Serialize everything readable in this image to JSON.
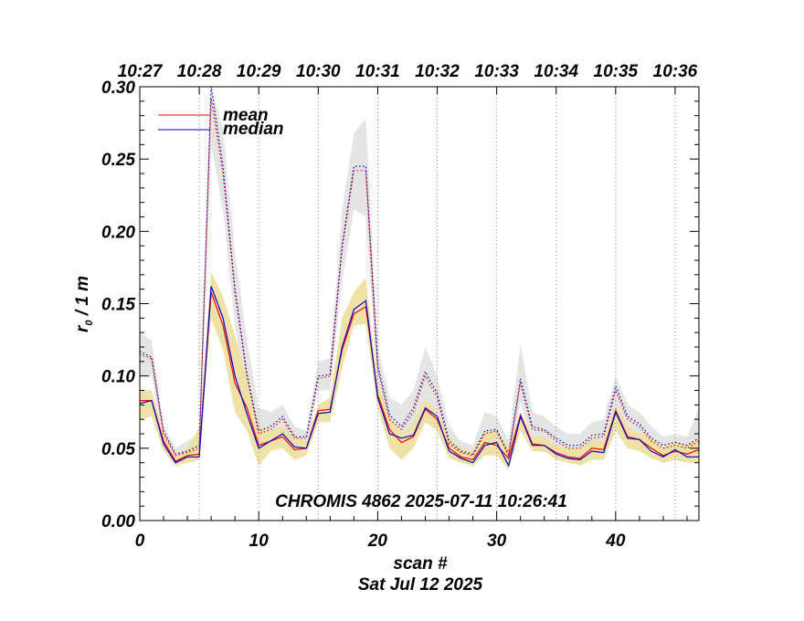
{
  "chart_data": {
    "type": "line",
    "title": "",
    "annotation": "CHROMIS 4862 2025-07-11 10:26:41",
    "xlabel": "scan #",
    "xlabel2": "Sat Jul 12 2025",
    "ylabel_main": "r",
    "ylabel_sub": "0",
    "ylabel_rest": " / 1 m",
    "xlim": [
      0,
      47
    ],
    "ylim": [
      0,
      0.3
    ],
    "x_ticks": [
      0,
      10,
      20,
      30,
      40
    ],
    "x_tick_labels": [
      "0",
      "10",
      "20",
      "30",
      "40"
    ],
    "y_ticks": [
      0,
      0.05,
      0.1,
      0.15,
      0.2,
      0.25,
      0.3
    ],
    "y_tick_labels": [
      "0.00",
      "0.05",
      "0.10",
      "0.15",
      "0.20",
      "0.25",
      "0.30"
    ],
    "time_axis": {
      "labels": [
        "10:27",
        "10:28",
        "10:29",
        "10:30",
        "10:31",
        "10:32",
        "10:33",
        "10:34",
        "10:35",
        "10:36"
      ],
      "positions": [
        0,
        5,
        10,
        15,
        20,
        25,
        30,
        35,
        40,
        45
      ]
    },
    "grid": "vertical dotted at time ticks",
    "legend_position": "top-left",
    "legend": [
      {
        "name": "mean",
        "color": "#ff0000"
      },
      {
        "name": "median",
        "color": "#0000cc"
      }
    ],
    "x": [
      0,
      1,
      2,
      3,
      4,
      5,
      6,
      7,
      8,
      9,
      10,
      11,
      12,
      13,
      14,
      15,
      16,
      17,
      18,
      19,
      20,
      21,
      22,
      23,
      24,
      25,
      26,
      27,
      28,
      29,
      30,
      31,
      32,
      33,
      34,
      35,
      36,
      37,
      38,
      39,
      40,
      41,
      42,
      43,
      44,
      45,
      46,
      47
    ],
    "series": [
      {
        "name": "mean",
        "style": "solid",
        "color": "#ff0000",
        "values": [
          0.083,
          0.083,
          0.055,
          0.041,
          0.045,
          0.046,
          0.158,
          0.135,
          0.095,
          0.078,
          0.052,
          0.055,
          0.058,
          0.049,
          0.05,
          0.076,
          0.077,
          0.118,
          0.143,
          0.148,
          0.087,
          0.063,
          0.054,
          0.058,
          0.077,
          0.07,
          0.05,
          0.044,
          0.042,
          0.054,
          0.052,
          0.043,
          0.073,
          0.053,
          0.052,
          0.047,
          0.044,
          0.043,
          0.05,
          0.049,
          0.076,
          0.058,
          0.056,
          0.05,
          0.045,
          0.048,
          0.046,
          0.049
        ]
      },
      {
        "name": "median",
        "style": "solid",
        "color": "#0000cc",
        "values": [
          0.081,
          0.083,
          0.053,
          0.04,
          0.044,
          0.044,
          0.162,
          0.14,
          0.1,
          0.074,
          0.05,
          0.055,
          0.06,
          0.051,
          0.05,
          0.074,
          0.075,
          0.12,
          0.146,
          0.152,
          0.085,
          0.06,
          0.057,
          0.059,
          0.078,
          0.072,
          0.048,
          0.043,
          0.04,
          0.052,
          0.054,
          0.038,
          0.072,
          0.052,
          0.052,
          0.046,
          0.043,
          0.042,
          0.048,
          0.047,
          0.075,
          0.057,
          0.056,
          0.048,
          0.044,
          0.049,
          0.044,
          0.044
        ]
      },
      {
        "name": "mean (dotted)",
        "style": "dotted",
        "color": "#ff0000",
        "values": [
          0.115,
          0.112,
          0.06,
          0.045,
          0.047,
          0.05,
          0.292,
          0.24,
          0.158,
          0.1,
          0.06,
          0.063,
          0.07,
          0.057,
          0.057,
          0.098,
          0.1,
          0.188,
          0.242,
          0.242,
          0.105,
          0.07,
          0.063,
          0.075,
          0.1,
          0.085,
          0.053,
          0.047,
          0.045,
          0.06,
          0.062,
          0.045,
          0.095,
          0.063,
          0.062,
          0.055,
          0.05,
          0.05,
          0.057,
          0.058,
          0.09,
          0.07,
          0.065,
          0.055,
          0.05,
          0.052,
          0.05,
          0.055
        ]
      },
      {
        "name": "median (dotted)",
        "style": "dotted",
        "color": "#0000cc",
        "values": [
          0.117,
          0.113,
          0.062,
          0.046,
          0.048,
          0.052,
          0.3,
          0.245,
          0.16,
          0.102,
          0.062,
          0.065,
          0.072,
          0.058,
          0.058,
          0.1,
          0.101,
          0.19,
          0.245,
          0.245,
          0.108,
          0.073,
          0.065,
          0.078,
          0.103,
          0.088,
          0.055,
          0.048,
          0.046,
          0.062,
          0.063,
          0.046,
          0.098,
          0.065,
          0.063,
          0.057,
          0.052,
          0.052,
          0.059,
          0.06,
          0.093,
          0.072,
          0.067,
          0.057,
          0.052,
          0.054,
          0.052,
          0.057
        ]
      }
    ],
    "bands": [
      {
        "name": "gray",
        "color": "#e5e5e5",
        "upper": [
          0.13,
          0.125,
          0.065,
          0.05,
          0.055,
          0.06,
          0.31,
          0.27,
          0.185,
          0.125,
          0.078,
          0.075,
          0.08,
          0.065,
          0.062,
          0.11,
          0.112,
          0.215,
          0.268,
          0.278,
          0.12,
          0.085,
          0.08,
          0.09,
          0.12,
          0.1,
          0.065,
          0.055,
          0.052,
          0.075,
          0.072,
          0.055,
          0.122,
          0.075,
          0.072,
          0.065,
          0.06,
          0.06,
          0.068,
          0.07,
          0.1,
          0.08,
          0.075,
          0.065,
          0.058,
          0.06,
          0.058,
          0.078
        ],
        "lower": [
          0.1,
          0.1,
          0.055,
          0.04,
          0.042,
          0.045,
          0.26,
          0.215,
          0.135,
          0.085,
          0.052,
          0.055,
          0.06,
          0.05,
          0.05,
          0.09,
          0.09,
          0.165,
          0.215,
          0.21,
          0.095,
          0.062,
          0.055,
          0.065,
          0.085,
          0.072,
          0.048,
          0.043,
          0.04,
          0.052,
          0.052,
          0.04,
          0.082,
          0.055,
          0.055,
          0.05,
          0.045,
          0.045,
          0.05,
          0.05,
          0.08,
          0.062,
          0.058,
          0.05,
          0.045,
          0.047,
          0.045,
          0.05
        ]
      },
      {
        "name": "yellow",
        "color": "#eee2a6",
        "upper": [
          0.09,
          0.09,
          0.06,
          0.045,
          0.05,
          0.065,
          0.172,
          0.155,
          0.128,
          0.1,
          0.065,
          0.062,
          0.065,
          0.058,
          0.055,
          0.08,
          0.085,
          0.14,
          0.158,
          0.168,
          0.095,
          0.072,
          0.06,
          0.068,
          0.085,
          0.075,
          0.058,
          0.05,
          0.048,
          0.062,
          0.062,
          0.05,
          0.075,
          0.058,
          0.058,
          0.052,
          0.05,
          0.05,
          0.055,
          0.055,
          0.08,
          0.065,
          0.06,
          0.058,
          0.05,
          0.055,
          0.052,
          0.058
        ],
        "lower": [
          0.07,
          0.072,
          0.048,
          0.038,
          0.04,
          0.042,
          0.14,
          0.118,
          0.075,
          0.062,
          0.038,
          0.048,
          0.05,
          0.042,
          0.045,
          0.068,
          0.068,
          0.105,
          0.135,
          0.136,
          0.078,
          0.05,
          0.042,
          0.05,
          0.068,
          0.062,
          0.043,
          0.04,
          0.038,
          0.045,
          0.045,
          0.035,
          0.062,
          0.048,
          0.048,
          0.042,
          0.04,
          0.038,
          0.042,
          0.042,
          0.062,
          0.05,
          0.048,
          0.043,
          0.04,
          0.042,
          0.04,
          0.04
        ]
      }
    ]
  }
}
